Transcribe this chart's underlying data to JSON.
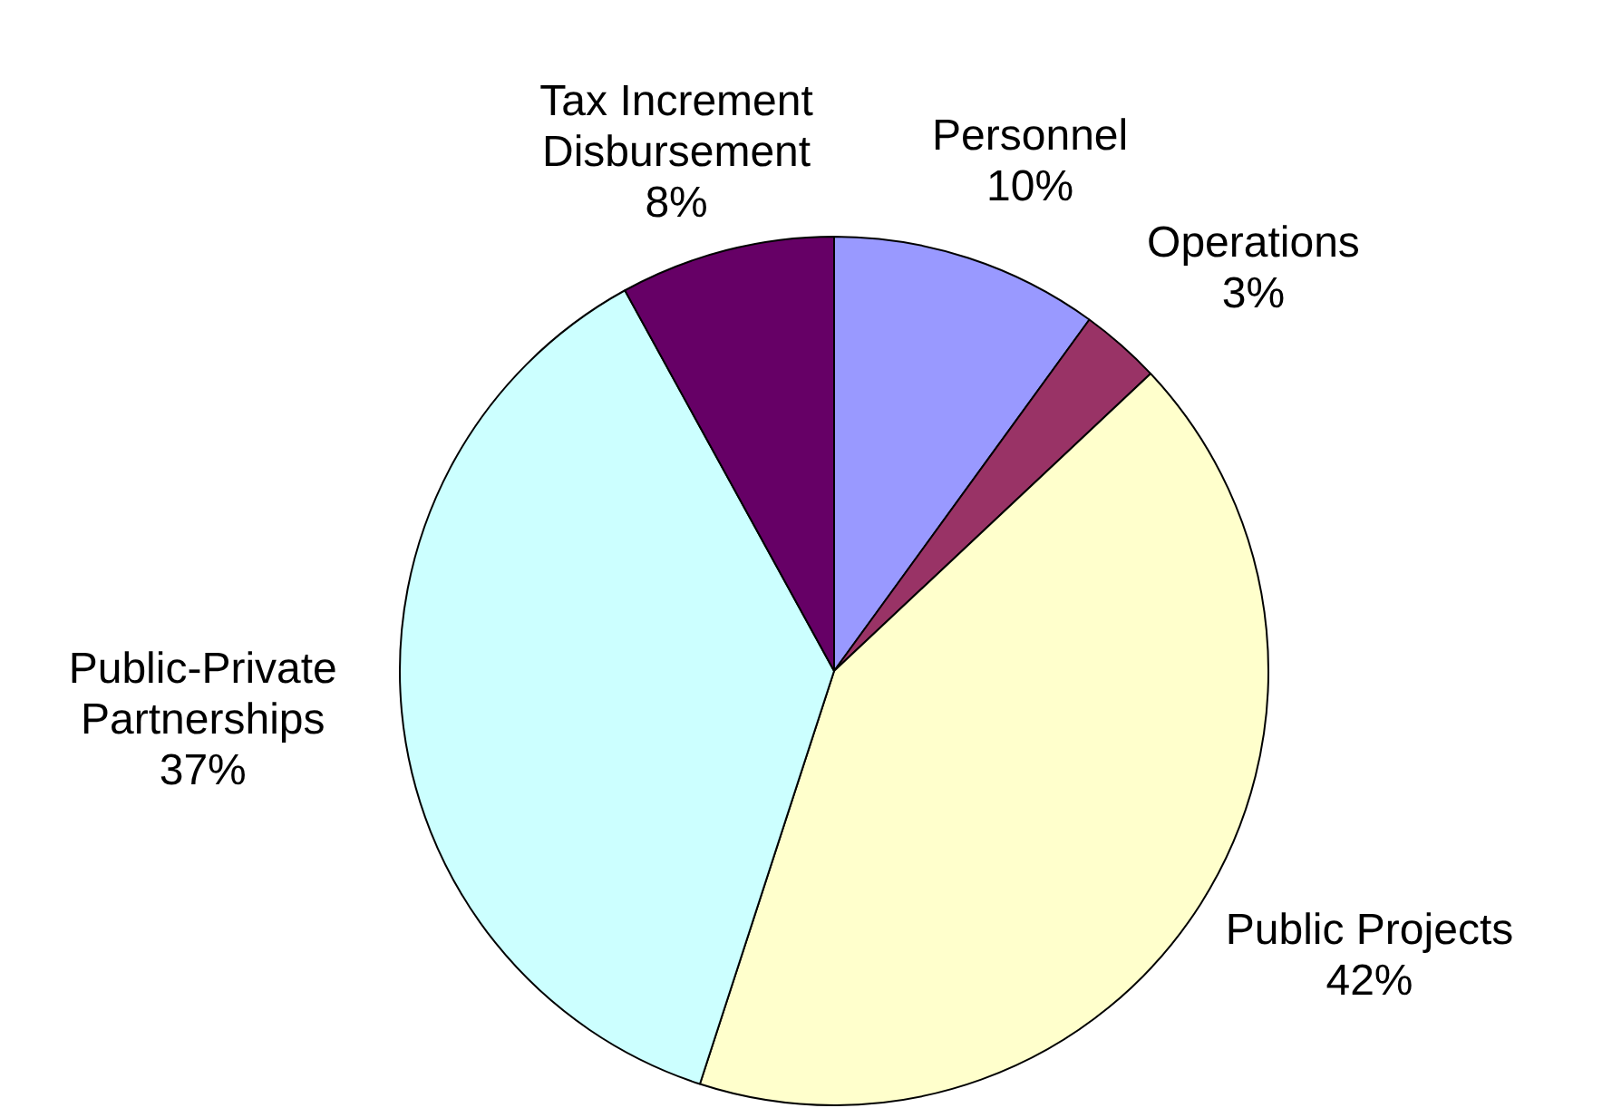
{
  "chart_data": {
    "type": "pie",
    "categories": [
      "Personnel",
      "Operations",
      "Public Projects",
      "Public-Private Partnerships",
      "Tax Increment Disbursement"
    ],
    "values": [
      10,
      3,
      42,
      37,
      8
    ],
    "colors": [
      "#9999ff",
      "#993366",
      "#ffffcc",
      "#ccffff",
      "#660066"
    ],
    "value_labels": [
      "10%",
      "3%",
      "42%",
      "37%",
      "8%"
    ],
    "legend": false
  }
}
